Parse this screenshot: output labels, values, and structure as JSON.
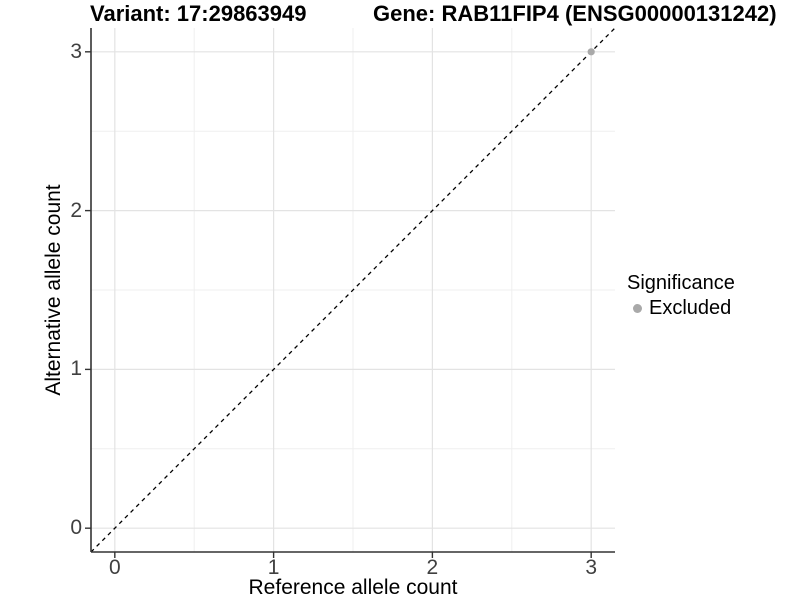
{
  "header": {
    "variant_title": "Variant: 17:29863949",
    "gene_title": "Gene: RAB11FIP4 (ENSG00000131242)"
  },
  "chart_data": {
    "type": "scatter",
    "xlabel": "Reference allele count",
    "ylabel": "Alternative allele count",
    "xlim": [
      -0.15,
      3.15
    ],
    "ylim": [
      -0.15,
      3.15
    ],
    "x_ticks": [
      0,
      1,
      2,
      3
    ],
    "y_ticks": [
      0,
      1,
      2,
      3
    ],
    "minor_gridlines": [
      0.5,
      1.5,
      2.5
    ],
    "grid": "major and minor, light gray on white panel",
    "identity_line": {
      "equation": "y = x",
      "style": "dashed",
      "color": "#000000"
    },
    "series": [
      {
        "name": "Excluded",
        "color": "#a9a9a9",
        "points": [
          {
            "x": 3,
            "y": 3
          }
        ]
      }
    ],
    "legend": {
      "position": "right",
      "title": "Significance",
      "items": [
        {
          "label": "Excluded",
          "color": "#a9a9a9"
        }
      ]
    }
  },
  "colors": {
    "axis_line": "#333333",
    "tick_label": "#404040",
    "major_grid": "#e3e3e3",
    "minor_grid": "#efefef",
    "point": "#a9a9a9",
    "background": "#ffffff"
  }
}
